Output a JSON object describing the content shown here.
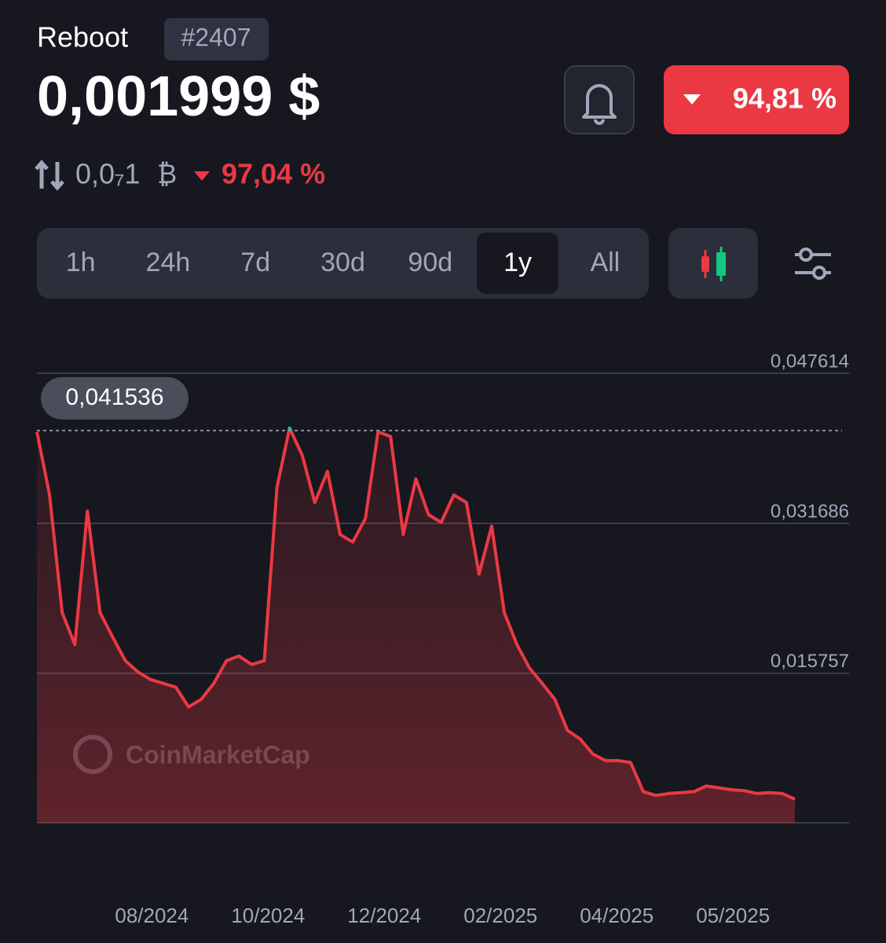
{
  "header": {
    "name": "Reboot",
    "rank": "#2407",
    "price": "0,001999 $",
    "change": "94,81 %",
    "btc_price": "0,0₇1",
    "btc_symbol": "₿",
    "btc_change": "97,04 %"
  },
  "timeframes": [
    "1h",
    "24h",
    "7d",
    "30d",
    "90d",
    "1y",
    "All"
  ],
  "selected_timeframe": "1y",
  "chart_data": {
    "type": "line",
    "watermark": "CoinMarketCap",
    "color": "#ea3943",
    "highlight_color": "#16c784",
    "values": [
      0.0414,
      0.0347,
      0.0222,
      0.0188,
      0.033,
      0.0222,
      0.0196,
      0.0171,
      0.0159,
      0.0151,
      0.0147,
      0.0143,
      0.0122,
      0.013,
      0.0147,
      0.0171,
      0.0176,
      0.0167,
      0.0171,
      0.0355,
      0.0418,
      0.0389,
      0.0339,
      0.0372,
      0.0305,
      0.0297,
      0.0322,
      0.0414,
      0.0409,
      0.0305,
      0.0364,
      0.0326,
      0.0318,
      0.0347,
      0.0339,
      0.0263,
      0.0314,
      0.0222,
      0.0188,
      0.0163,
      0.0147,
      0.013,
      0.0097,
      0.0088,
      0.0072,
      0.0065,
      0.0065,
      0.0063,
      0.0032,
      0.0028,
      0.003,
      0.0031,
      0.0032,
      0.0038,
      0.0036,
      0.0034,
      0.0033,
      0.003,
      0.0031,
      0.003,
      0.0024
    ],
    "xlim": [
      0,
      60
    ],
    "xticks": [
      {
        "value": 9.1,
        "label": "08/2024"
      },
      {
        "value": 18.3,
        "label": "10/2024"
      },
      {
        "value": 27.5,
        "label": "12/2024"
      },
      {
        "value": 36.7,
        "label": "02/2025"
      },
      {
        "value": 45.9,
        "label": "04/2025"
      },
      {
        "value": 55.1,
        "label": "05/2025"
      }
    ],
    "ylim": [
      -0.0001,
      0.047614
    ],
    "yticks": [
      {
        "value": 0.047614,
        "label": "0,047614"
      },
      {
        "value": 0.031686,
        "label": "0,031686"
      },
      {
        "value": 0.015757,
        "label": "0,015757"
      }
    ],
    "reference_line": {
      "value": 0.041536,
      "label": "0,041536"
    },
    "grid": true
  }
}
